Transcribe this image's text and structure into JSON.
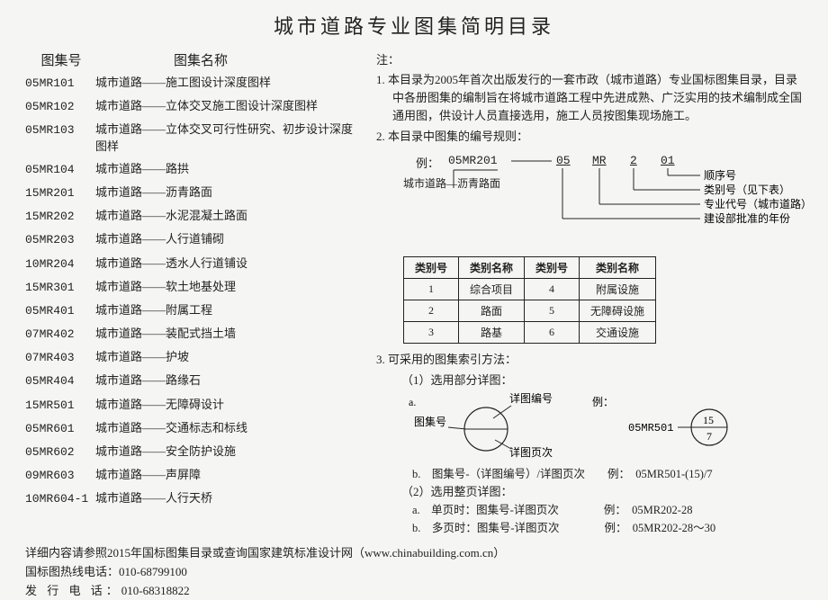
{
  "title": "城市道路专业图集简明目录",
  "list_header": {
    "code": "图集号",
    "name": "图集名称"
  },
  "entries": [
    {
      "code": "05MR101",
      "name": "城市道路——施工图设计深度图样"
    },
    {
      "code": "05MR102",
      "name": "城市道路——立体交叉施工图设计深度图样"
    },
    {
      "code": "05MR103",
      "name": "城市道路——立体交叉可行性研究、初步设计深度图样"
    },
    {
      "code": "05MR104",
      "name": "城市道路——路拱"
    },
    {
      "code": "15MR201",
      "name": "城市道路——沥青路面"
    },
    {
      "code": "15MR202",
      "name": "城市道路——水泥混凝土路面"
    },
    {
      "code": "05MR203",
      "name": "城市道路——人行道铺砌"
    },
    {
      "code": "10MR204",
      "name": "城市道路——透水人行道铺设"
    },
    {
      "code": "15MR301",
      "name": "城市道路——软土地基处理"
    },
    {
      "code": "05MR401",
      "name": "城市道路——附属工程"
    },
    {
      "code": "07MR402",
      "name": "城市道路——装配式挡土墙"
    },
    {
      "code": "07MR403",
      "name": "城市道路——护坡"
    },
    {
      "code": "05MR404",
      "name": "城市道路——路缘石"
    },
    {
      "code": "15MR501",
      "name": "城市道路——无障碍设计"
    },
    {
      "code": "05MR601",
      "name": "城市道路——交通标志和标线"
    },
    {
      "code": "05MR602",
      "name": "城市道路——安全防护设施"
    },
    {
      "code": "09MR603",
      "name": "城市道路——声屏障"
    },
    {
      "code": "10MR604-1",
      "name": "城市道路——人行天桥"
    }
  ],
  "notes_head": "注：",
  "note1": "1. 本目录为2005年首次出版发行的一套市政（城市道路）专业国标图集目录，目录中各册图集的编制旨在将城市道路工程中先进成熟、广泛实用的技术编制成全国通用图，供设计人员直接选用，施工人员按图集现场施工。",
  "note2": "2. 本目录中图集的编号规则：",
  "code_example": {
    "label": "例：",
    "code": "05MR201",
    "desc": "城市道路—沥青路面",
    "p1": "05",
    "p2": "MR",
    "p3": "2",
    "p4": "01",
    "l1": "顺序号",
    "l2": "类别号（见下表）",
    "l3": "专业代号（城市道路）",
    "l4": "建设部批准的年份"
  },
  "cat_table": {
    "headers": [
      "类别号",
      "类别名称",
      "类别号",
      "类别名称"
    ],
    "rows": [
      [
        "1",
        "综合项目",
        "4",
        "附属设施"
      ],
      [
        "2",
        "路面",
        "5",
        "无障碍设施"
      ],
      [
        "3",
        "路基",
        "6",
        "交通设施"
      ]
    ]
  },
  "note3": "3. 可采用的图集索引方法：",
  "note3_1": "（1）选用部分详图：",
  "note3_1a_label": "a.",
  "detail_labels": {
    "tujihao": "图集号",
    "bianhao": "详图编号",
    "yeci": "详图页次",
    "li": "例：",
    "ex_code": "05MR501",
    "ex_top": "15",
    "ex_bot": "7"
  },
  "note3_1b": "b.　图集号-（详图编号）/详图页次　　例：　05MR501-(15)/7",
  "note3_2": "（2）选用整页详图：",
  "note3_2a": "a.　单页时：图集号-详图页次　　　　例：　05MR202-28",
  "note3_2b": "b.　多页时：图集号-详图页次　　　　例：　05MR202-28～30",
  "footer1": "详细内容请参照2015年国标图集目录或查询国家建筑标准设计网（www.chinabuilding.com.cn）",
  "footer2_label": "国标图热线电话：",
  "footer2_val": "010-68799100",
  "footer3_label": "发 行 电 话：",
  "footer3_val": "010-68318822"
}
